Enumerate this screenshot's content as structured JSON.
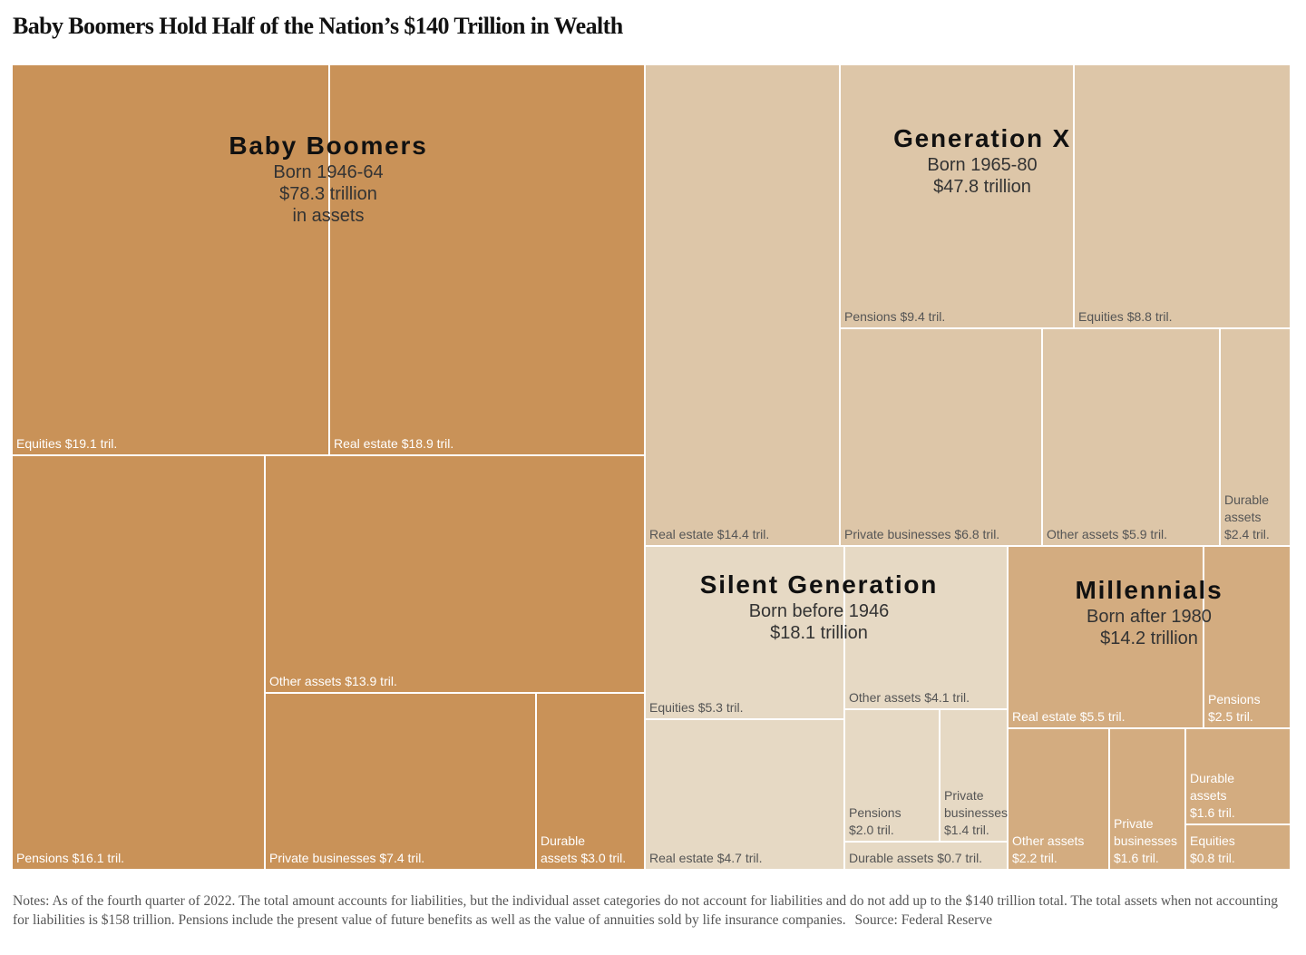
{
  "chart_data": {
    "type": "treemap",
    "title": "Baby Boomers Hold Half of the Nation’s $140 Trillion in Wealth",
    "unit": "trillion dollars",
    "generations": [
      {
        "key": "boomers",
        "name": "Baby Boomers",
        "born": "Born 1946-64",
        "total_text": "$78.3 trillion\nin assets",
        "total": 78.3,
        "color": "#c99258",
        "label_color": "#ffffff",
        "categories": [
          {
            "name": "Equities",
            "value": 19.1,
            "label": "Equities $19.1 tril."
          },
          {
            "name": "Real estate",
            "value": 18.9,
            "label": "Real estate $18.9 tril."
          },
          {
            "name": "Pensions",
            "value": 16.1,
            "label": "Pensions $16.1 tril."
          },
          {
            "name": "Other assets",
            "value": 13.9,
            "label": "Other assets $13.9 tril."
          },
          {
            "name": "Private businesses",
            "value": 7.4,
            "label": "Private businesses $7.4 tril."
          },
          {
            "name": "Durable assets",
            "value": 3.0,
            "label": "Durable\nassets $3.0 tril."
          }
        ]
      },
      {
        "key": "genx",
        "name": "Generation X",
        "born": "Born 1965-80",
        "total_text": "$47.8 trillion",
        "total": 47.8,
        "color": "#ddc6a8",
        "label_color": "#555555",
        "categories": [
          {
            "name": "Real estate",
            "value": 14.4,
            "label": "Real estate $14.4 tril."
          },
          {
            "name": "Pensions",
            "value": 9.4,
            "label": "Pensions $9.4 tril."
          },
          {
            "name": "Equities",
            "value": 8.8,
            "label": "Equities $8.8 tril."
          },
          {
            "name": "Private businesses",
            "value": 6.8,
            "label": "Private businesses $6.8 tril."
          },
          {
            "name": "Other assets",
            "value": 5.9,
            "label": "Other assets $5.9 tril."
          },
          {
            "name": "Durable assets",
            "value": 2.4,
            "label": "Durable\nassets\n$2.4 tril."
          }
        ]
      },
      {
        "key": "silent",
        "name": "Silent Generation",
        "born": "Born before 1946",
        "total_text": "$18.1 trillion",
        "total": 18.1,
        "color": "#e6d9c4",
        "label_color": "#555555",
        "categories": [
          {
            "name": "Equities",
            "value": 5.3,
            "label": "Equities $5.3 tril."
          },
          {
            "name": "Real estate",
            "value": 4.7,
            "label": "Real estate $4.7 tril."
          },
          {
            "name": "Other assets",
            "value": 4.1,
            "label": "Other assets $4.1 tril."
          },
          {
            "name": "Pensions",
            "value": 2.0,
            "label": "Pensions\n$2.0 tril."
          },
          {
            "name": "Private businesses",
            "value": 1.4,
            "label": "Private\nbusinesses\n$1.4 tril."
          },
          {
            "name": "Durable assets",
            "value": 0.7,
            "label": "Durable assets $0.7 tril."
          }
        ]
      },
      {
        "key": "millennials",
        "name": "Millennials",
        "born": "Born after 1980",
        "total_text": "$14.2 trillion",
        "total": 14.2,
        "color": "#d3ac80",
        "label_color": "#ffffff",
        "categories": [
          {
            "name": "Real estate",
            "value": 5.5,
            "label": "Real estate $5.5 tril."
          },
          {
            "name": "Pensions",
            "value": 2.5,
            "label": "Pensions\n$2.5 tril."
          },
          {
            "name": "Other assets",
            "value": 2.2,
            "label": "Other assets\n$2.2 tril."
          },
          {
            "name": "Private businesses",
            "value": 1.6,
            "label": "Private\nbusinesses\n$1.6 tril."
          },
          {
            "name": "Durable assets",
            "value": 1.6,
            "label": "Durable\nassets\n$1.6 tril."
          },
          {
            "name": "Equities",
            "value": 0.8,
            "label": "Equities\n$0.8 tril."
          }
        ]
      }
    ]
  },
  "notes": {
    "text": "Notes: As of the fourth quarter of 2022. The total amount accounts for liabilities, but the individual asset categories do not account for liabilities and do not add up to the $140 trillion total. The total assets when not accounting for liabilities is $158 trillion. Pensions include the present value of future benefits as well as the value of annuities sold by life insurance companies.",
    "source": "Source: Federal Reserve"
  }
}
